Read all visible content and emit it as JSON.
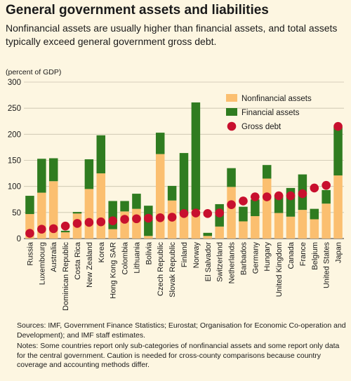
{
  "title": "General government assets and liabilities",
  "subtitle": "Nonfinancial assets are usually higher than financial assets, and total assets typically exceed general government gross debt.",
  "unit_label": "(percent of GDP)",
  "sources": "Sources: IMF, Government Finance Statistics; Eurostat; Organisation for Economic Co-operation and Development); and IMF staff estimates.",
  "notes": "Notes: Some countries report only sub-categories of nonfinancial assets and some report only data for the central government. Caution is needed for cross-county comparisons because country coverage and accounting methods differ.",
  "chart_data": {
    "type": "bar",
    "stacked": true,
    "categories": [
      "Russia",
      "Luxembourg",
      "Australia",
      "Dominican Republic",
      "Costa Rica",
      "New Zealand",
      "Korea",
      "Hong Kong SAR",
      "Colombia",
      "Lithuania",
      "Bolivia",
      "Czech Republic",
      "Slovak Republic",
      "Finland",
      "Norway",
      "El Salvador",
      "Switzerland",
      "Netherlands",
      "Barbados",
      "Germany",
      "Hungary",
      "United Kingdom",
      "Canada",
      "France",
      "Belgium",
      "United States",
      "Japan"
    ],
    "series": [
      {
        "name": "Nonfinancial assets",
        "kind": "bar",
        "color": "#fbbf70",
        "values": [
          47,
          88,
          110,
          12,
          48,
          95,
          125,
          18,
          52,
          57,
          5,
          162,
          73,
          47,
          55,
          5,
          23,
          99,
          33,
          43,
          115,
          49,
          42,
          55,
          37,
          67,
          121
        ]
      },
      {
        "name": "Financial assets",
        "kind": "bar",
        "color": "#2f7c20",
        "values": [
          35,
          65,
          44,
          3,
          3,
          57,
          73,
          54,
          20,
          29,
          58,
          41,
          28,
          117,
          206,
          6,
          43,
          36,
          28,
          32,
          26,
          34,
          55,
          68,
          20,
          26,
          93
        ]
      },
      {
        "name": "Gross debt",
        "kind": "scatter",
        "color": "#c8102e",
        "values": [
          10,
          18,
          19,
          24,
          29,
          31,
          32,
          34,
          37,
          38,
          39,
          40,
          41,
          48,
          49,
          48,
          49,
          65,
          72,
          80,
          80,
          82,
          82,
          86,
          97,
          102,
          215
        ]
      }
    ],
    "ylim": [
      0,
      300
    ],
    "yticks": [
      0,
      50,
      100,
      150,
      200,
      250,
      300
    ],
    "grid": true,
    "legend_position": "top-right"
  }
}
